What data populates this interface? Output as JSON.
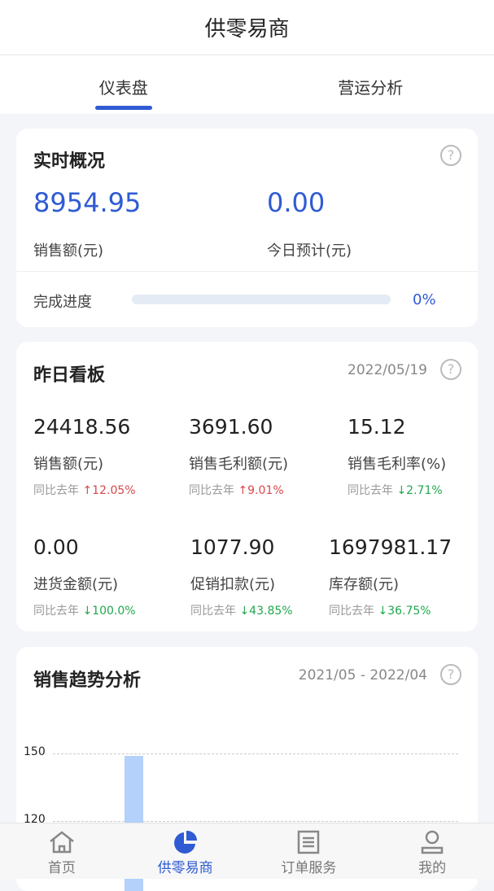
{
  "header": {
    "title": "供零易商"
  },
  "tabs": [
    {
      "label": "仪表盘",
      "active": true
    },
    {
      "label": "营运分析",
      "active": false
    }
  ],
  "realtime": {
    "title": "实时概况",
    "sales_value": "8954.95",
    "sales_label": "销售额(元)",
    "forecast_value": "0.00",
    "forecast_label": "今日预计(元)",
    "progress_label": "完成进度",
    "progress_percent": 0,
    "progress_text": "0%"
  },
  "yesterday": {
    "title": "昨日看板",
    "date": "2022/05/19",
    "yoy_label": "同比去年",
    "items": [
      {
        "value": "24418.56",
        "label": "销售额(元)",
        "change": "↑12.05%",
        "direction": "up"
      },
      {
        "value": "3691.60",
        "label": "销售毛利额(元)",
        "change": "↑9.01%",
        "direction": "up"
      },
      {
        "value": "15.12",
        "label": "销售毛利率(%)",
        "change": "↓2.71%",
        "direction": "down"
      },
      {
        "value": "0.00",
        "label": "进货金额(元)",
        "change": "↓100.0%",
        "direction": "down"
      },
      {
        "value": "1077.90",
        "label": "促销扣款(元)",
        "change": "↓43.85%",
        "direction": "down"
      },
      {
        "value": "1697981.17",
        "label": "库存额(元)",
        "change": "↓36.75%",
        "direction": "down"
      }
    ]
  },
  "trend": {
    "title": "销售趋势分析",
    "range": "2021/05 - 2022/04"
  },
  "chart_data": {
    "type": "bar",
    "y_ticks": [
      "150",
      "120"
    ],
    "values": [
      149
    ],
    "grid": true,
    "bar_color": "#b3d1fb"
  },
  "bottom_nav": [
    {
      "label": "首页",
      "icon": "home-icon"
    },
    {
      "label": "供零易商",
      "icon": "pie-chart-icon",
      "active": true
    },
    {
      "label": "订单服务",
      "icon": "document-icon"
    },
    {
      "label": "我的",
      "icon": "user-icon"
    }
  ],
  "colors": {
    "accent": "#2f5bd3",
    "up": "#d9474b",
    "down": "#1fa84d"
  }
}
